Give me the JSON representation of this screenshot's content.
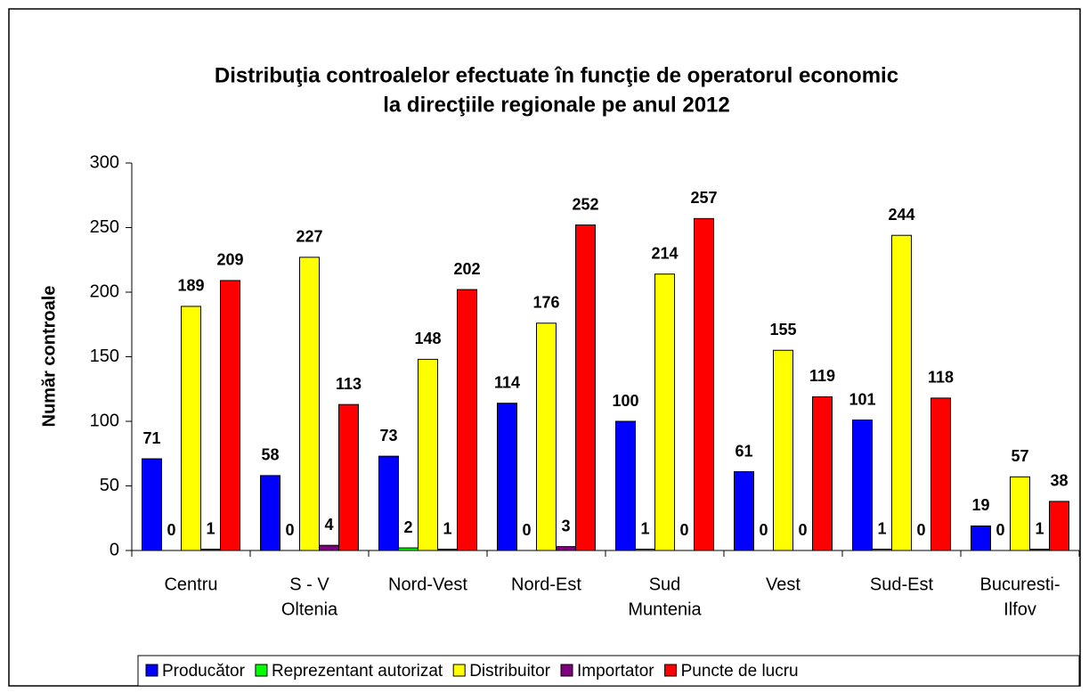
{
  "chart_data": {
    "type": "bar",
    "title": [
      "Distribuţia controalelor efectuate în funcţie de operatorul economic",
      "la direcţiile regionale pe anul 2012"
    ],
    "y_label": "Număr controale",
    "categories": [
      [
        "Centru"
      ],
      [
        "S - V",
        "Oltenia"
      ],
      [
        "Nord-Vest"
      ],
      [
        "Nord-Est"
      ],
      [
        "Sud",
        "Muntenia"
      ],
      [
        "Vest"
      ],
      [
        "Sud-Est"
      ],
      [
        "Bucuresti-",
        "Ilfov"
      ]
    ],
    "series": [
      {
        "name": "Producător",
        "color": "#0000ff",
        "values": [
          71,
          58,
          73,
          114,
          100,
          61,
          101,
          19
        ]
      },
      {
        "name": "Reprezentant autorizat",
        "color": "#00ff00",
        "values": [
          0,
          0,
          2,
          0,
          1,
          0,
          1,
          0
        ]
      },
      {
        "name": "Distribuitor",
        "color": "#ffff00",
        "values": [
          189,
          227,
          148,
          176,
          214,
          155,
          244,
          57
        ]
      },
      {
        "name": "Importator",
        "color": "#800080",
        "values": [
          1,
          4,
          1,
          3,
          0,
          0,
          0,
          1
        ]
      },
      {
        "name": "Puncte de lucru",
        "color": "#ff0000",
        "values": [
          209,
          113,
          202,
          252,
          257,
          119,
          118,
          38
        ]
      }
    ],
    "ylim": [
      0,
      300
    ],
    "yticks": [
      0,
      50,
      100,
      150,
      200,
      250,
      300
    ],
    "legend": "bottom"
  }
}
